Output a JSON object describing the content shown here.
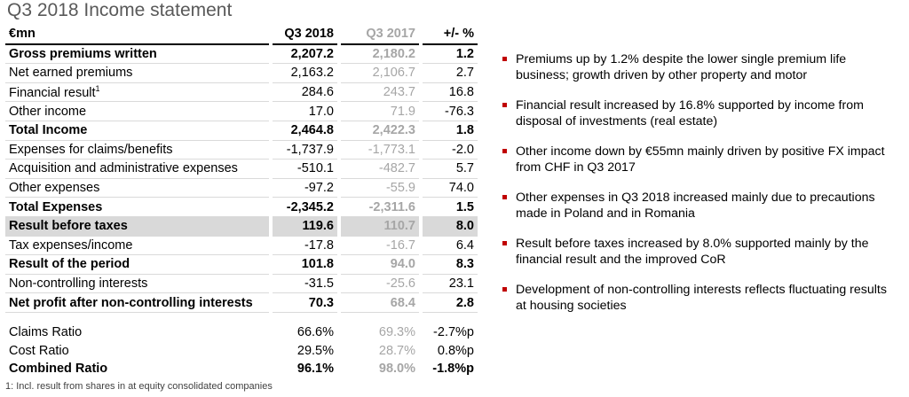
{
  "title": "Q3 2018 Income statement",
  "table": {
    "headers": {
      "label": "€mn",
      "q3_2018": "Q3 2018",
      "q3_2017": "Q3 2017",
      "change": "+/- %"
    },
    "rows": [
      {
        "label": "Gross premiums written",
        "q3_2018": "2,207.2",
        "q3_2017": "2,180.2",
        "change": "1.2",
        "bold": true
      },
      {
        "label": "Net earned premiums",
        "q3_2018": "2,163.2",
        "q3_2017": "2,106.7",
        "change": "2.7"
      },
      {
        "label": "Financial result",
        "sup": "1",
        "q3_2018": "284.6",
        "q3_2017": "243.7",
        "change": "16.8"
      },
      {
        "label": "Other income",
        "q3_2018": "17.0",
        "q3_2017": "71.9",
        "change": "-76.3"
      },
      {
        "label": "Total Income",
        "q3_2018": "2,464.8",
        "q3_2017": "2,422.3",
        "change": "1.8",
        "bold": true
      },
      {
        "label": "Expenses for claims/benefits",
        "q3_2018": "-1,737.9",
        "q3_2017": "-1,773.1",
        "change": "-2.0"
      },
      {
        "label": "Acquisition and administrative expenses",
        "q3_2018": "-510.1",
        "q3_2017": "-482.7",
        "change": "5.7"
      },
      {
        "label": "Other expenses",
        "q3_2018": "-97.2",
        "q3_2017": "-55.9",
        "change": "74.0"
      },
      {
        "label": "Total Expenses",
        "q3_2018": "-2,345.2",
        "q3_2017": "-2,311.6",
        "change": "1.5",
        "bold": true
      },
      {
        "label": "Result before taxes",
        "q3_2018": "119.6",
        "q3_2017": "110.7",
        "change": "8.0",
        "bold": true,
        "shaded": true
      },
      {
        "label": "Tax expenses/income",
        "q3_2018": "-17.8",
        "q3_2017": "-16.7",
        "change": "6.4"
      },
      {
        "label": "Result of the period",
        "q3_2018": "101.8",
        "q3_2017": "94.0",
        "change": "8.3",
        "bold": true
      },
      {
        "label": "Non-controlling interests",
        "q3_2018": "-31.5",
        "q3_2017": "-25.6",
        "change": "23.1"
      },
      {
        "label": "Net profit after non-controlling interests",
        "q3_2018": "70.3",
        "q3_2017": "68.4",
        "change": "2.8",
        "bold": true
      }
    ],
    "ratios": [
      {
        "label": "Claims Ratio",
        "q3_2018": "66.6%",
        "q3_2017": "69.3%",
        "change": "-2.7%p"
      },
      {
        "label": "Cost Ratio",
        "q3_2018": "29.5%",
        "q3_2017": "28.7%",
        "change": "0.8%p"
      },
      {
        "label": "Combined Ratio",
        "q3_2018": "96.1%",
        "q3_2017": "98.0%",
        "change": "-1.8%p",
        "bold": true
      }
    ]
  },
  "footnote": "1: Incl. result from shares in at equity consolidated companies",
  "bullets": [
    "Premiums up by 1.2% despite the lower single premium life business; growth driven by other property and motor",
    "Financial result increased by 16.8% supported by income from disposal of investments (real estate)",
    "Other income down by €55mn mainly driven by positive FX impact from CHF in Q3 2017",
    "Other expenses in Q3 2018 increased mainly due to precautions made in Poland and in Romania",
    "Result before taxes increased by 8.0% supported mainly by the financial result and the improved CoR",
    "Development of non-controlling interests reflects fluctuating results at housing societies"
  ],
  "colors": {
    "bullet": "#c00000",
    "prior_year": "#a6a6a6",
    "shade": "#d9d9d9",
    "title": "#595959"
  }
}
